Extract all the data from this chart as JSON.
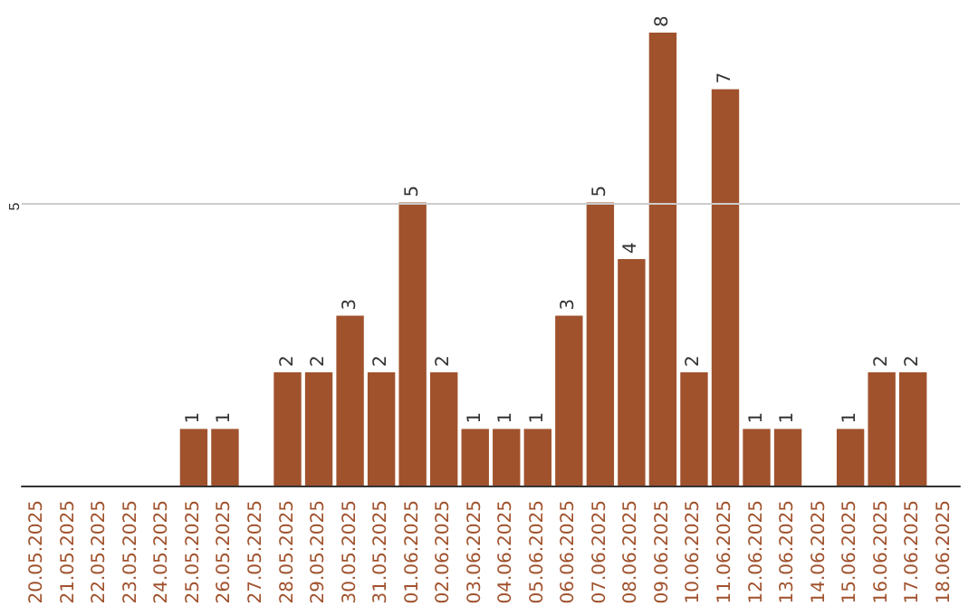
{
  "chart_data": {
    "type": "bar",
    "categories": [
      "20.05.2025",
      "21.05.2025",
      "22.05.2025",
      "23.05.2025",
      "24.05.2025",
      "25.05.2025",
      "26.05.2025",
      "27.05.2025",
      "28.05.2025",
      "29.05.2025",
      "30.05.2025",
      "31.05.2025",
      "01.06.2025",
      "02.06.2025",
      "03.06.2025",
      "04.06.2025",
      "05.06.2025",
      "06.06.2025",
      "07.06.2025",
      "08.06.2025",
      "09.06.2025",
      "10.06.2025",
      "11.06.2025",
      "12.06.2025",
      "13.06.2025",
      "14.06.2025",
      "15.06.2025",
      "16.06.2025",
      "17.06.2025",
      "18.06.2025"
    ],
    "values": [
      0,
      0,
      0,
      0,
      0,
      1,
      1,
      0,
      2,
      2,
      3,
      2,
      5,
      2,
      1,
      1,
      1,
      3,
      5,
      4,
      8,
      2,
      7,
      1,
      1,
      0,
      1,
      2,
      2,
      0
    ],
    "value_labels": [
      null,
      null,
      null,
      null,
      null,
      "1",
      "1",
      null,
      "2",
      "2",
      "3",
      "2",
      "5",
      "2",
      "1",
      "1",
      "1",
      "3",
      "5",
      "4",
      "8",
      "2",
      "7",
      "1",
      "1",
      null,
      "1",
      "2",
      "2",
      null
    ],
    "color": "#a0522d",
    "ref_lines": [
      {
        "axis": "y",
        "value": 5,
        "label": "5",
        "color": "#cccccc"
      }
    ]
  }
}
